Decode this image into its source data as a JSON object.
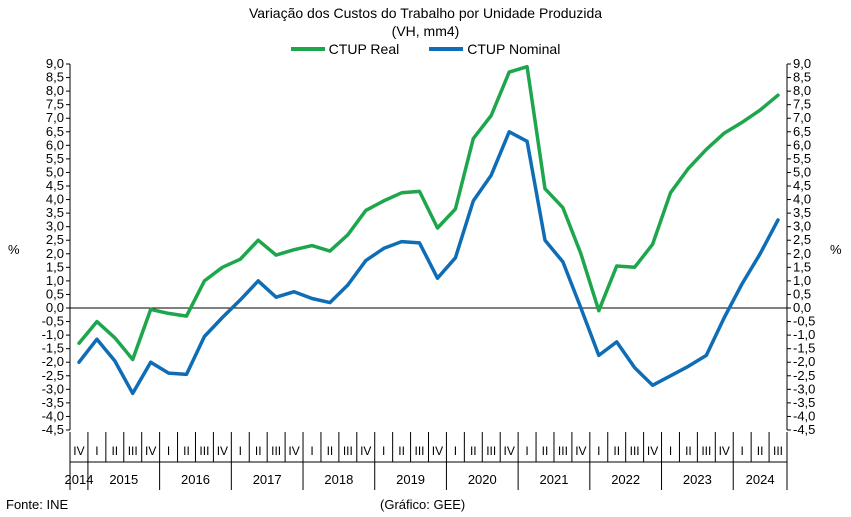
{
  "chart_data": {
    "type": "line",
    "title": "Variação dos Custos do Trabalho por Unidade Produzida",
    "subtitle": "(VH, mm4)",
    "ylabel_left": "%",
    "ylabel_right": "%",
    "ylim": [
      -4.5,
      9.0
    ],
    "ytick_step": 0.5,
    "grid": false,
    "legend_position": "top-center",
    "x": [
      "2014 IV",
      "2015 I",
      "2015 II",
      "2015 III",
      "2015 IV",
      "2016 I",
      "2016 II",
      "2016 III",
      "2016 IV",
      "2017 I",
      "2017 II",
      "2017 III",
      "2017 IV",
      "2018 I",
      "2018 II",
      "2018 III",
      "2018 IV",
      "2019 I",
      "2019 II",
      "2019 III",
      "2019 IV",
      "2020 I",
      "2020 II",
      "2020 III",
      "2020 IV",
      "2021 I",
      "2021 II",
      "2021 III",
      "2021 IV",
      "2022 I",
      "2022 II",
      "2022 III",
      "2022 IV",
      "2023 I",
      "2023 II",
      "2023 III",
      "2023 IV",
      "2024 I",
      "2024 II",
      "2024 III"
    ],
    "quarter_labels": [
      "IV",
      "I",
      "II",
      "III",
      "IV",
      "I",
      "II",
      "III",
      "IV",
      "I",
      "II",
      "III",
      "IV",
      "I",
      "II",
      "III",
      "IV",
      "I",
      "II",
      "III",
      "IV",
      "I",
      "II",
      "III",
      "IV",
      "I",
      "II",
      "III",
      "IV",
      "I",
      "II",
      "III",
      "IV",
      "I",
      "II",
      "III",
      "IV",
      "I",
      "II",
      "III"
    ],
    "year_labels": [
      "2014",
      "2015",
      "2016",
      "2017",
      "2018",
      "2019",
      "2020",
      "2021",
      "2022",
      "2023",
      "2024"
    ],
    "series": [
      {
        "name": "CTUP Real",
        "color": "#1ea64c",
        "values": [
          -1.3,
          -0.5,
          -1.1,
          -1.9,
          -0.05,
          -0.2,
          -0.3,
          1.0,
          1.5,
          1.8,
          2.5,
          1.95,
          2.15,
          2.3,
          2.1,
          2.7,
          3.6,
          3.95,
          4.25,
          4.3,
          2.95,
          3.65,
          6.25,
          7.1,
          8.7,
          8.9,
          4.4,
          3.7,
          2.0,
          -0.1,
          1.55,
          1.5,
          2.35,
          4.25,
          5.15,
          5.85,
          6.45,
          6.85,
          7.3,
          7.85
        ]
      },
      {
        "name": "CTUP Nominal",
        "color": "#0f6db5",
        "values": [
          -2.0,
          -1.15,
          -1.95,
          -3.15,
          -2.0,
          -2.4,
          -2.45,
          -1.05,
          -0.35,
          0.3,
          1.0,
          0.4,
          0.6,
          0.35,
          0.2,
          0.85,
          1.75,
          2.2,
          2.45,
          2.4,
          1.1,
          1.85,
          3.95,
          4.9,
          6.5,
          6.15,
          2.5,
          1.7,
          0.0,
          -1.75,
          -1.25,
          -2.2,
          -2.85,
          -2.5,
          -2.15,
          -1.75,
          -0.35,
          0.9,
          2.0,
          3.25
        ]
      }
    ]
  },
  "footer": {
    "source": "Fonte: INE",
    "credit": "(Gráfico: GEE)"
  }
}
